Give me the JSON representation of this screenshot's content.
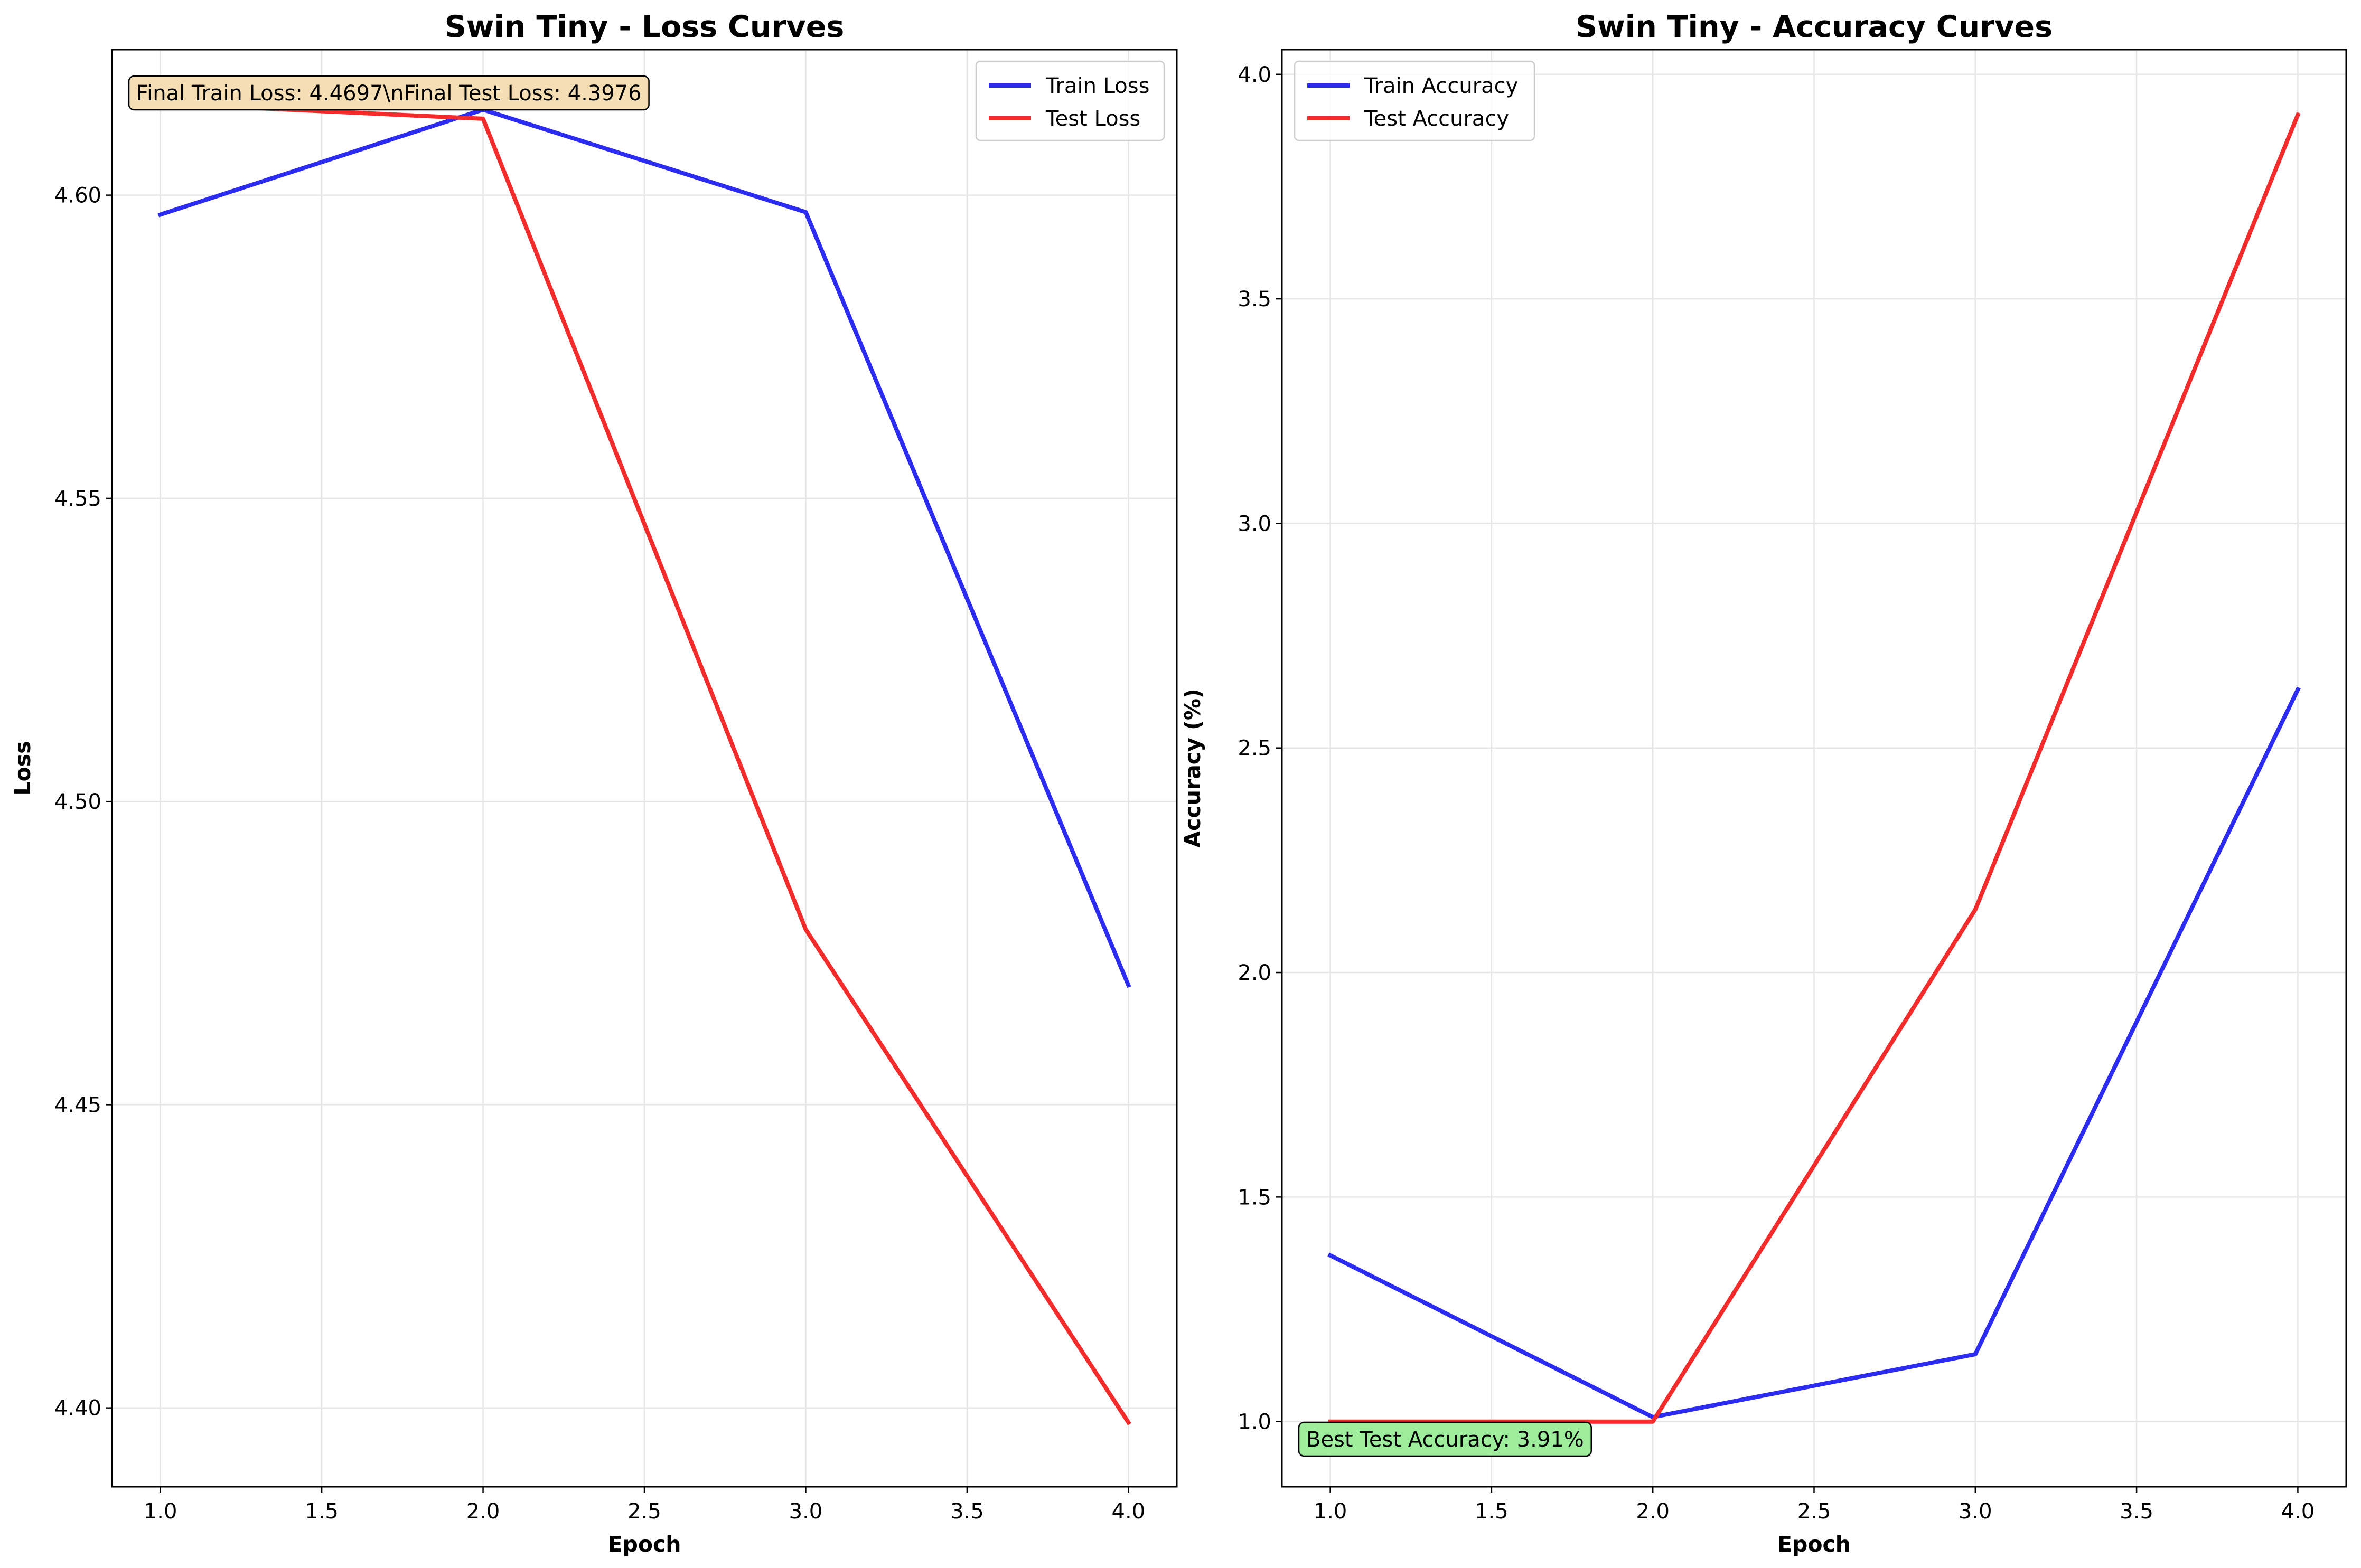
{
  "colors": {
    "train": "#2b2bf1",
    "test": "#f42b2b",
    "grid": "#e6e6e6",
    "axis": "#000000",
    "background": "#ffffff",
    "loss_annotation_bg": "#f5deb3",
    "acc_annotation_bg": "#9ded9d"
  },
  "chart_data": [
    {
      "type": "line",
      "title": "Swin Tiny - Loss Curves",
      "xlabel": "Epoch",
      "ylabel": "Loss",
      "xlim": [
        0.85,
        4.15
      ],
      "ylim": [
        4.387,
        4.624
      ],
      "xticks": [
        1.0,
        1.5,
        2.0,
        2.5,
        3.0,
        3.5,
        4.0
      ],
      "xtick_labels": [
        "1.0",
        "1.5",
        "2.0",
        "2.5",
        "3.0",
        "3.5",
        "4.0"
      ],
      "yticks": [
        4.4,
        4.45,
        4.5,
        4.55,
        4.6
      ],
      "ytick_labels": [
        "4.40",
        "4.45",
        "4.50",
        "4.55",
        "4.60"
      ],
      "grid": true,
      "legend_position": "top-right",
      "x": [
        1,
        2,
        3,
        4
      ],
      "series": [
        {
          "name": "Train Loss",
          "color": "#2b2bf1",
          "values": [
            4.5968,
            4.6141,
            4.5972,
            4.4697
          ]
        },
        {
          "name": "Test Loss",
          "color": "#f42b2b",
          "values": [
            4.6151,
            4.6126,
            4.4789,
            4.3976
          ]
        }
      ],
      "annotation": {
        "text": "Final Train Loss: 4.4697\\nFinal Test Loss: 4.3976",
        "position": "top-left",
        "background": "#f5deb3"
      }
    },
    {
      "type": "line",
      "title": "Swin Tiny - Accuracy Curves",
      "xlabel": "Epoch",
      "ylabel": "Accuracy (%)",
      "xlim": [
        0.85,
        4.15
      ],
      "ylim": [
        0.855,
        4.055
      ],
      "xticks": [
        1.0,
        1.5,
        2.0,
        2.5,
        3.0,
        3.5,
        4.0
      ],
      "xtick_labels": [
        "1.0",
        "1.5",
        "2.0",
        "2.5",
        "3.0",
        "3.5",
        "4.0"
      ],
      "yticks": [
        1.0,
        1.5,
        2.0,
        2.5,
        3.0,
        3.5,
        4.0
      ],
      "ytick_labels": [
        "1.0",
        "1.5",
        "2.0",
        "2.5",
        "3.0",
        "3.5",
        "4.0"
      ],
      "grid": true,
      "legend_position": "top-left",
      "x": [
        1,
        2,
        3,
        4
      ],
      "series": [
        {
          "name": "Train Accuracy",
          "color": "#2b2bf1",
          "values": [
            1.37,
            1.01,
            1.15,
            2.63
          ]
        },
        {
          "name": "Test Accuracy",
          "color": "#f42b2b",
          "values": [
            1.0,
            1.0,
            2.14,
            3.91
          ]
        }
      ],
      "annotation": {
        "text": "Best Test Accuracy: 3.91%",
        "position": "bottom-left",
        "background": "#9ded9d"
      }
    }
  ]
}
